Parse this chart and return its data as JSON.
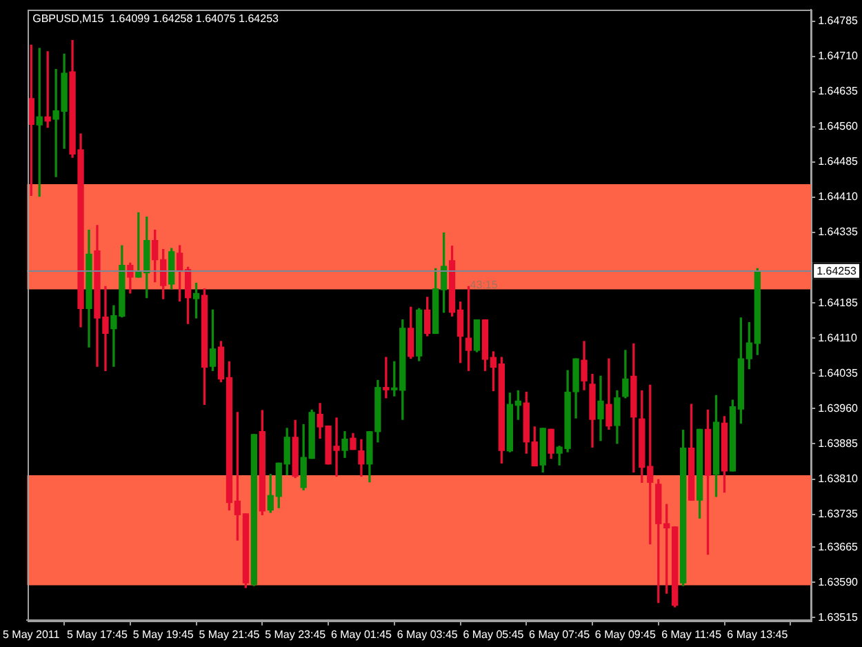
{
  "chart_data": {
    "type": "candlestick",
    "title": "GBPUSD,M15  1.64099 1.64258 1.64075 1.64253",
    "categories": [
      "5 May 2011",
      null,
      null,
      null,
      null,
      null,
      null,
      null,
      "5 May 17:45",
      null,
      null,
      null,
      null,
      null,
      null,
      null,
      "5 May 19:45",
      null,
      null,
      null,
      null,
      null,
      null,
      null,
      "5 May 21:45",
      null,
      null,
      null,
      null,
      null,
      null,
      null,
      "5 May 23:45",
      null,
      null,
      null,
      null,
      null,
      null,
      null,
      "6 May 01:45",
      null,
      null,
      null,
      null,
      null,
      null,
      null,
      "6 May 03:45",
      null,
      null,
      null,
      null,
      null,
      null,
      null,
      "6 May 05:45",
      null,
      null,
      null,
      null,
      null,
      null,
      null,
      "6 May 07:45",
      null,
      null,
      null,
      null,
      null,
      null,
      null,
      "6 May 09:45",
      null,
      null,
      null,
      null,
      null,
      null,
      null,
      "6 May 11:45",
      null,
      null,
      null,
      null,
      null,
      null,
      null,
      "6 May 13:45"
    ],
    "ohlc": [
      [
        1.6462,
        1.64734,
        1.64414,
        1.64565
      ],
      [
        1.64564,
        1.64727,
        1.64412,
        1.64581
      ],
      [
        1.64581,
        1.6472,
        1.64559,
        1.64572
      ],
      [
        1.64576,
        1.64682,
        1.64454,
        1.64594
      ],
      [
        1.64593,
        1.64715,
        1.64514,
        1.64674
      ],
      [
        1.64677,
        1.64744,
        1.64495,
        1.64502
      ],
      [
        1.64511,
        1.64545,
        1.64134,
        1.64173
      ],
      [
        1.64173,
        1.6434,
        1.64091,
        1.64289
      ],
      [
        1.64296,
        1.6435,
        1.6405,
        1.64153
      ],
      [
        1.64155,
        1.6422,
        1.64041,
        1.6412
      ],
      [
        1.6413,
        1.64179,
        1.6405,
        1.64158
      ],
      [
        1.64157,
        1.64307,
        1.64155,
        1.64265
      ],
      [
        1.64265,
        1.6427,
        1.64206,
        1.6424
      ],
      [
        1.6424,
        1.64377,
        1.6424,
        1.64251
      ],
      [
        1.64249,
        1.64368,
        1.64196,
        1.64318
      ],
      [
        1.64318,
        1.6434,
        1.6423,
        1.64277
      ],
      [
        1.64277,
        1.64299,
        1.64194,
        1.64222
      ],
      [
        1.64225,
        1.64301,
        1.64215,
        1.64294
      ],
      [
        1.64291,
        1.64307,
        1.64189,
        1.64254
      ],
      [
        1.64256,
        1.64261,
        1.64141,
        1.64196
      ],
      [
        1.64194,
        1.64227,
        1.64153,
        1.64205
      ],
      [
        1.64201,
        1.64215,
        1.63969,
        1.64048
      ],
      [
        1.6405,
        1.6417,
        1.64041,
        1.64087
      ],
      [
        1.64091,
        1.64103,
        1.64017,
        1.64023
      ],
      [
        1.64026,
        1.6406,
        1.63744,
        1.6376
      ],
      [
        1.63763,
        1.63952,
        1.6368,
        1.63734
      ],
      [
        1.63736,
        1.63736,
        1.63579,
        1.63589
      ],
      [
        1.63586,
        1.63905,
        1.63583,
        1.63905
      ],
      [
        1.63911,
        1.63956,
        1.63734,
        1.63742
      ],
      [
        1.63744,
        1.6382,
        1.63739,
        1.63775
      ],
      [
        1.63773,
        1.63844,
        1.63749,
        1.63844
      ],
      [
        1.63842,
        1.63918,
        1.63819,
        1.63899
      ],
      [
        1.63899,
        1.63935,
        1.63813,
        1.63816
      ],
      [
        1.63792,
        1.63926,
        1.63787,
        1.63856
      ],
      [
        1.63854,
        1.63957,
        1.63854,
        1.63952
      ],
      [
        1.63948,
        1.63971,
        1.63897,
        1.63921
      ],
      [
        1.63923,
        1.63923,
        1.63842,
        1.63842
      ],
      [
        1.6388,
        1.6394,
        1.63816,
        1.63871
      ],
      [
        1.63871,
        1.63911,
        1.63856,
        1.63895
      ],
      [
        1.63897,
        1.63907,
        1.63873,
        1.63873
      ],
      [
        1.6387,
        1.63894,
        1.63816,
        1.63842
      ],
      [
        1.63842,
        1.63911,
        1.63804,
        1.63911
      ],
      [
        1.63911,
        1.6402,
        1.63889,
        1.64005
      ],
      [
        1.64005,
        1.64069,
        1.63983,
        1.64
      ],
      [
        1.64,
        1.6406,
        1.63987,
        1.64004
      ],
      [
        1.63999,
        1.64149,
        1.63937,
        1.64131
      ],
      [
        1.64131,
        1.64176,
        1.64067,
        1.64071
      ],
      [
        1.64072,
        1.64173,
        1.64062,
        1.6417
      ],
      [
        1.6417,
        1.64197,
        1.64115,
        1.6412
      ],
      [
        1.6412,
        1.64258,
        1.6412,
        1.64215
      ],
      [
        1.64213,
        1.64334,
        1.64165,
        1.64263
      ],
      [
        1.64275,
        1.64306,
        1.64157,
        1.64165
      ],
      [
        1.6417,
        1.64187,
        1.64058,
        1.64114
      ],
      [
        1.6411,
        1.6422,
        1.64041,
        1.64084
      ],
      [
        1.64084,
        1.64149,
        1.64081,
        1.64149
      ],
      [
        1.64149,
        1.64149,
        1.64041,
        1.64065
      ],
      [
        1.64069,
        1.64081,
        1.63998,
        1.64048
      ],
      [
        1.64055,
        1.64069,
        1.63844,
        1.63871
      ],
      [
        1.6387,
        1.63993,
        1.63868,
        1.63969
      ],
      [
        1.63967,
        1.63998,
        1.63937,
        1.63976
      ],
      [
        1.63972,
        1.63995,
        1.63865,
        1.63889
      ],
      [
        1.63889,
        1.63921,
        1.63838,
        1.63838
      ],
      [
        1.6384,
        1.63918,
        1.63825,
        1.63918
      ],
      [
        1.63916,
        1.63916,
        1.63854,
        1.63865
      ],
      [
        1.63865,
        1.6388,
        1.6384,
        1.63878
      ],
      [
        1.63875,
        1.64041,
        1.63868,
        1.63995
      ],
      [
        1.63996,
        1.64066,
        1.6394,
        1.64066
      ],
      [
        1.64063,
        1.64103,
        1.64,
        1.64019
      ],
      [
        1.64012,
        1.64033,
        1.63878,
        1.63937
      ],
      [
        1.63938,
        1.64029,
        1.63892,
        1.63976
      ],
      [
        1.63969,
        1.64066,
        1.63916,
        1.63923
      ],
      [
        1.63924,
        1.63998,
        1.63886,
        1.63983
      ],
      [
        1.63986,
        1.64084,
        1.63983,
        1.64023
      ],
      [
        1.64029,
        1.64098,
        1.63825,
        1.63942
      ],
      [
        1.63938,
        1.63998,
        1.63803,
        1.63835
      ],
      [
        1.63837,
        1.6401,
        1.63672,
        1.63803
      ],
      [
        1.63799,
        1.63809,
        1.63547,
        1.63715
      ],
      [
        1.63715,
        1.63756,
        1.63567,
        1.63706
      ],
      [
        1.63708,
        1.63708,
        1.63538,
        1.63541
      ],
      [
        1.63589,
        1.63914,
        1.63583,
        1.63876
      ],
      [
        1.63876,
        1.63969,
        1.63765,
        1.63765
      ],
      [
        1.63765,
        1.63916,
        1.63727,
        1.63916
      ],
      [
        1.63916,
        1.63957,
        1.6365,
        1.63818
      ],
      [
        1.6382,
        1.63988,
        1.63773,
        1.63931
      ],
      [
        1.63929,
        1.63943,
        1.63782,
        1.63827
      ],
      [
        1.63827,
        1.63978,
        1.63827,
        1.63964
      ],
      [
        1.63959,
        1.64153,
        1.63929,
        1.64066
      ],
      [
        1.64066,
        1.64143,
        1.64045,
        1.641
      ],
      [
        1.64099,
        1.64258,
        1.64075,
        1.64253
      ]
    ],
    "colors": [
      "#e81030",
      "#0c8c0c",
      "#e81030",
      "#0c8c0c",
      "#0c8c0c",
      "#e81030",
      "#e81030",
      "#0c8c0c",
      "#e81030",
      "#e81030",
      "#0c8c0c",
      "#0c8c0c",
      "#e81030",
      "#0c8c0c",
      "#0c8c0c",
      "#e81030",
      "#e81030",
      "#0c8c0c",
      "#e81030",
      "#e81030",
      "#0c8c0c",
      "#e81030",
      "#0c8c0c",
      "#e81030",
      "#e81030",
      "#e81030",
      "#e81030",
      "#0c8c0c",
      "#e81030",
      "#0c8c0c",
      "#0c8c0c",
      "#0c8c0c",
      "#e81030",
      "#0c8c0c",
      "#0c8c0c",
      "#e81030",
      "#e81030",
      "#e81030",
      "#0c8c0c",
      "#e81030",
      "#e81030",
      "#0c8c0c",
      "#0c8c0c",
      "#e81030",
      "#0c8c0c",
      "#0c8c0c",
      "#e81030",
      "#0c8c0c",
      "#e81030",
      "#0c8c0c",
      "#0c8c0c",
      "#e81030",
      "#e81030",
      "#e81030",
      "#0c8c0c",
      "#e81030",
      "#e81030",
      "#e81030",
      "#0c8c0c",
      "#0c8c0c",
      "#e81030",
      "#e81030",
      "#0c8c0c",
      "#e81030",
      "#0c8c0c",
      "#0c8c0c",
      "#0c8c0c",
      "#e81030",
      "#e81030",
      "#0c8c0c",
      "#e81030",
      "#0c8c0c",
      "#0c8c0c",
      "#e81030",
      "#e81030",
      "#e81030",
      "#e81030",
      "#e81030",
      "#e81030",
      "#0c8c0c",
      "#e81030",
      "#0c8c0c",
      "#e81030",
      "#0c8c0c",
      "#e81030",
      "#0c8c0c",
      "#0c8c0c",
      "#0c8c0c",
      "#0c8c0c"
    ],
    "ylim": [
      1.6351,
      1.6481
    ],
    "yticks": [
      1.64785,
      {
        "value": 1.6471,
        "label": "1.64710"
      },
      1.64635,
      {
        "value": 1.6456,
        "label": "1.64560"
      },
      1.64485,
      {
        "value": 1.6441,
        "label": "1.64410"
      },
      1.64335,
      1.64185,
      {
        "value": 1.6411,
        "label": "1.64110"
      },
      1.64035,
      {
        "value": 1.6396,
        "label": "1.63960"
      },
      1.63885,
      {
        "value": 1.6381,
        "label": "1.63810"
      },
      1.63735,
      1.63665,
      {
        "value": 1.6359,
        "label": "1.63590"
      },
      1.63515
    ],
    "bands": [
      {
        "axis": "y",
        "from": 1.64214,
        "to": 1.64438,
        "color": "#ff6347"
      },
      {
        "axis": "y",
        "from": 1.63584,
        "to": 1.63818,
        "color": "#ff6347"
      }
    ],
    "ref_lines": [
      {
        "axis": "y",
        "value": 1.64253,
        "label": "1.64253",
        "color": "#778899"
      }
    ],
    "annotations": [
      "43:15"
    ]
  }
}
